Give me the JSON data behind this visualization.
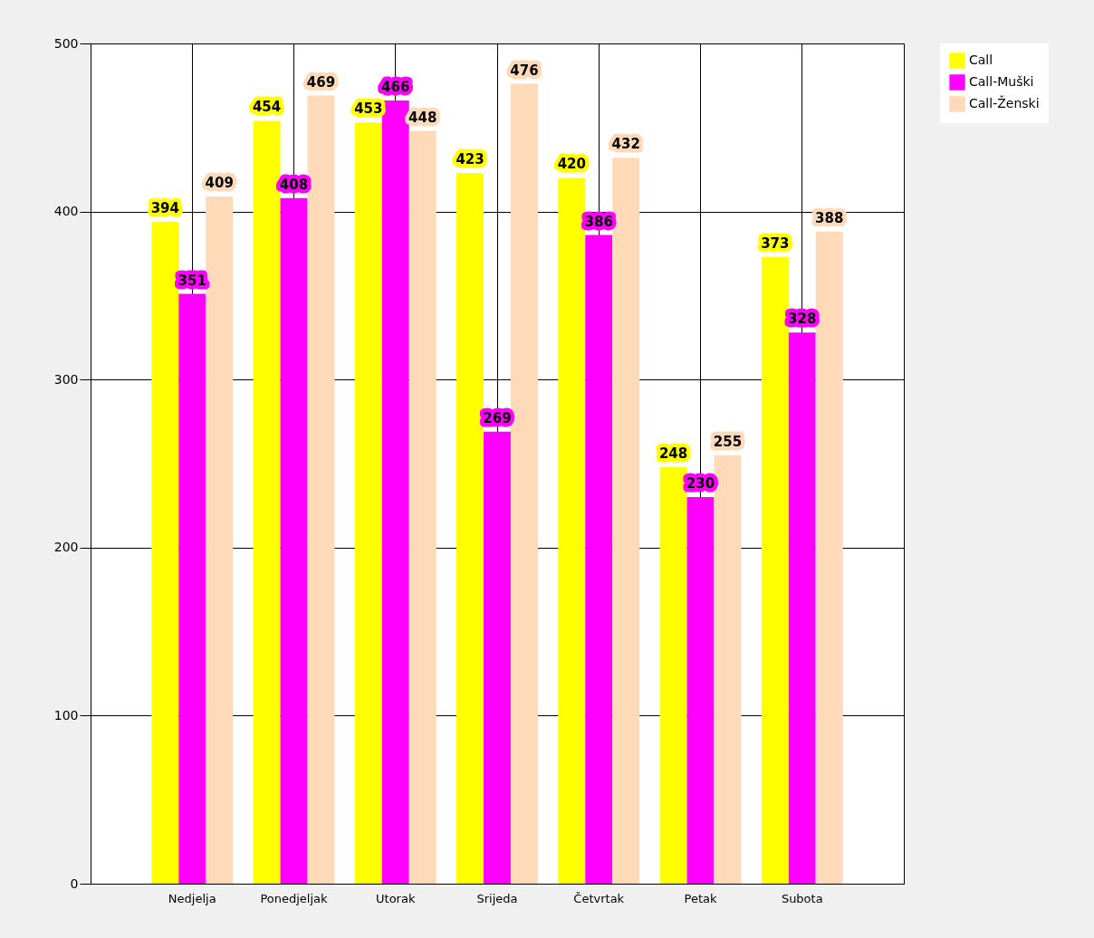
{
  "chart_data": {
    "type": "bar",
    "categories": [
      "Nedjelja",
      "Ponedjeljak",
      "Utorak",
      "Srijeda",
      "Četvrtak",
      "Petak",
      "Subota"
    ],
    "series": [
      {
        "name": "Call",
        "color": "#ffff00",
        "values": [
          394,
          454,
          453,
          423,
          420,
          248,
          373
        ]
      },
      {
        "name": "Call-Muški",
        "color": "#ff00ff",
        "values": [
          351,
          408,
          466,
          269,
          386,
          230,
          328
        ]
      },
      {
        "name": "Call-Ženski",
        "color": "#ffdab9",
        "values": [
          409,
          469,
          448,
          476,
          432,
          255,
          388
        ]
      }
    ],
    "ylim": [
      0,
      500
    ],
    "yticks": [
      0,
      100,
      200,
      300,
      400,
      500
    ],
    "grid": true,
    "legend": "top right",
    "data_labels": true
  }
}
